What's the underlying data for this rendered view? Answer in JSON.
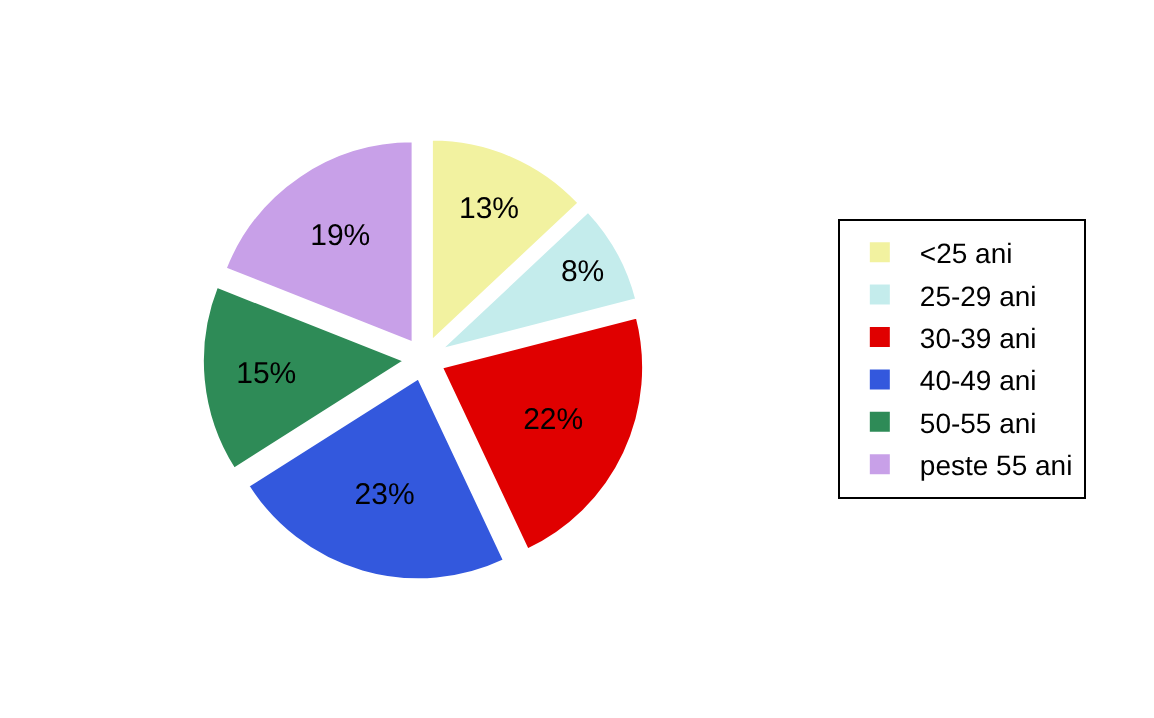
{
  "chart_data": {
    "type": "pie",
    "categories": [
      "<25 ani",
      "25-29 ani",
      "30-39 ani",
      "40-49 ani",
      "50-55 ani",
      "peste 55 ani"
    ],
    "values": [
      13,
      8,
      22,
      23,
      15,
      19
    ],
    "value_labels": [
      "13%",
      "8%",
      "22%",
      "23%",
      "15%",
      "19%"
    ],
    "colors": [
      "#f2f2a0",
      "#c4ecec",
      "#e00000",
      "#3358dd",
      "#2e8b57",
      "#c8a0e8"
    ],
    "legend": "right"
  }
}
